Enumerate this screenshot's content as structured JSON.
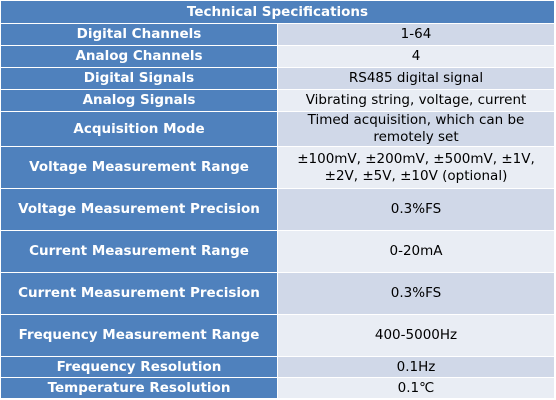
{
  "table": {
    "title": "Technical Specifications",
    "header_color": "#4f81bd",
    "row_colors": [
      "#d0d8e8",
      "#e9edf4"
    ],
    "rows": [
      {
        "label": "Digital Channels",
        "value": "1-64"
      },
      {
        "label": "Analog Channels",
        "value": "4"
      },
      {
        "label": "Digital Signals",
        "value": "RS485 digital signal"
      },
      {
        "label": "Analog Signals",
        "value": "Vibrating string, voltage, current"
      },
      {
        "label": "Acquisition Mode",
        "value": "Timed acquisition, which can be remotely set"
      },
      {
        "label": "Voltage Measurement Range",
        "value": "±100mV, ±200mV, ±500mV, ±1V, ±2V, ±5V, ±10V (optional)"
      },
      {
        "label": "Voltage Measurement Precision",
        "value": "0.3%FS"
      },
      {
        "label": "Current Measurement Range",
        "value": "0-20mA"
      },
      {
        "label": "Current Measurement Precision",
        "value": "0.3%FS"
      },
      {
        "label": "Frequency Measurement Range",
        "value": "400-5000Hz"
      },
      {
        "label": "Frequency Resolution",
        "value": "0.1Hz"
      },
      {
        "label": "Temperature Resolution",
        "value": "0.1℃"
      }
    ]
  }
}
